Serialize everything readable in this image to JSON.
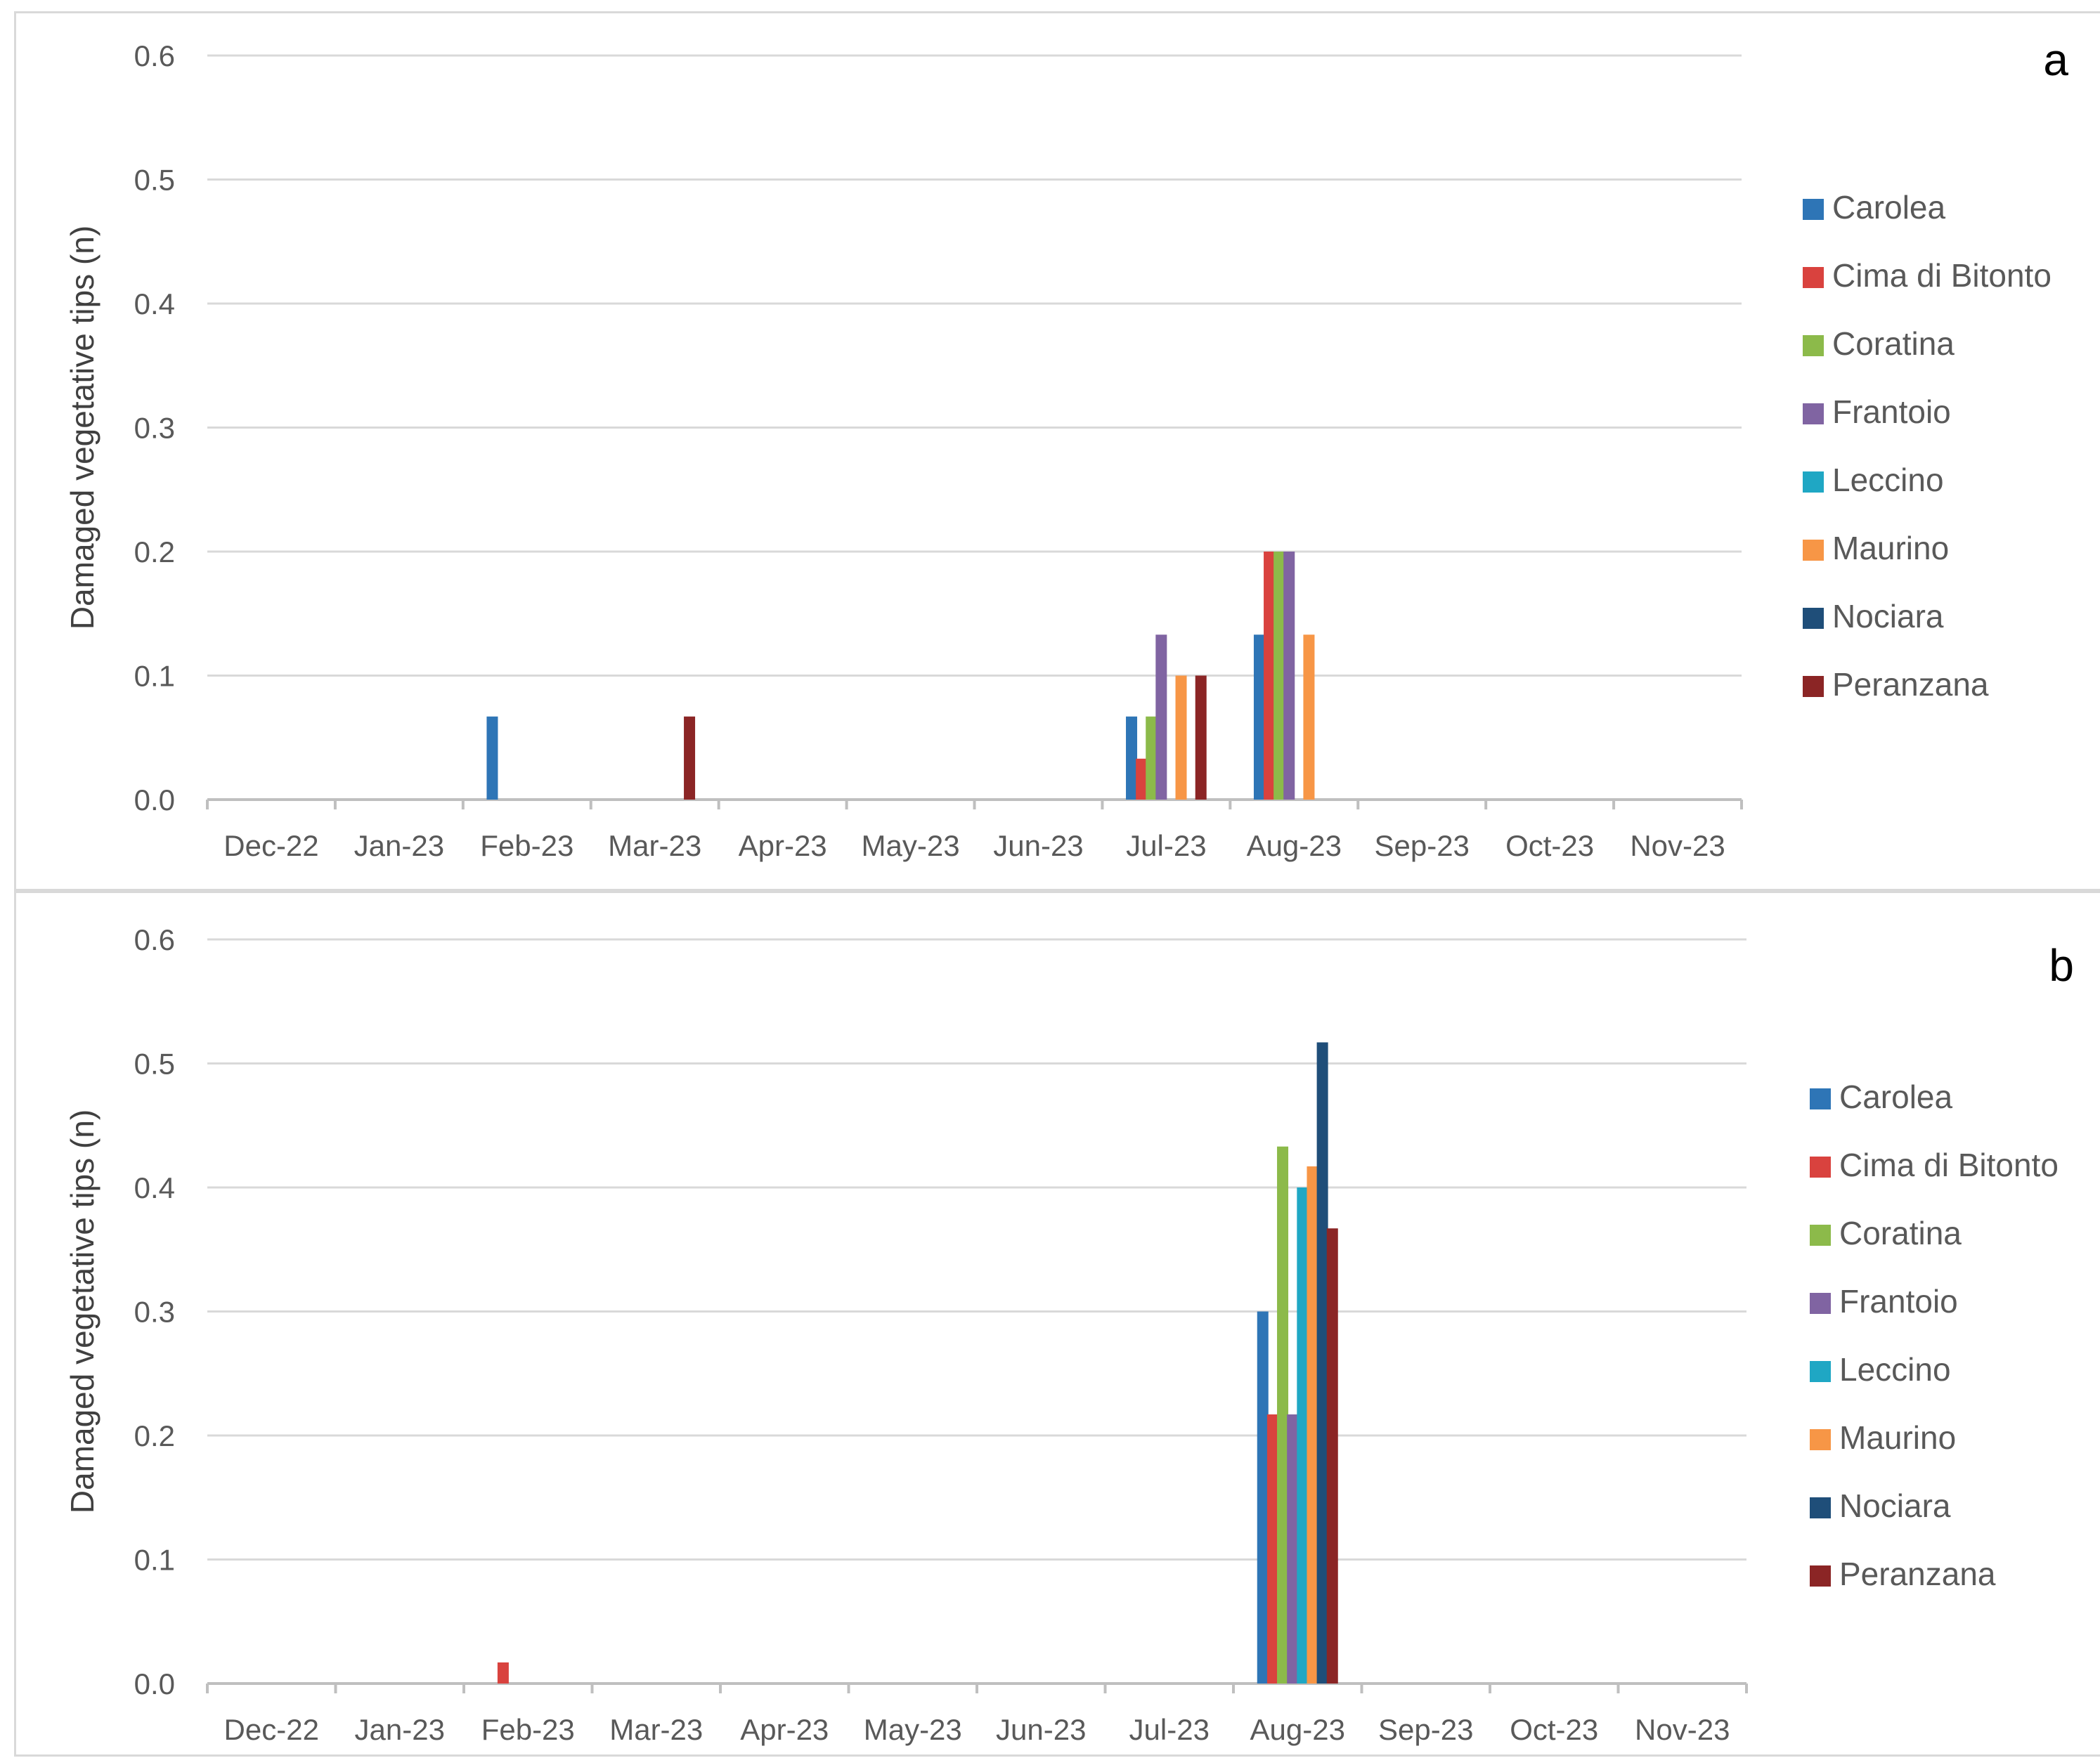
{
  "chart_data": [
    {
      "type": "bar",
      "panel_label": "a",
      "ylabel": "Damaged vegetative tips (n)",
      "xlabel": "",
      "ylim": [
        0,
        0.6
      ],
      "yticks": [
        "0.0",
        "0.1",
        "0.2",
        "0.3",
        "0.4",
        "0.5",
        "0.6"
      ],
      "grid": true,
      "legend_position": "right",
      "categories": [
        "Dec-22",
        "Jan-23",
        "Feb-23",
        "Mar-23",
        "Apr-23",
        "May-23",
        "Jun-23",
        "Jul-23",
        "Aug-23",
        "Sep-23",
        "Oct-23",
        "Nov-23"
      ],
      "series": [
        {
          "name": "Carolea",
          "color": "#2e75b6",
          "values": [
            0,
            0,
            0.067,
            0,
            0,
            0,
            0,
            0.067,
            0.133,
            0,
            0,
            0
          ]
        },
        {
          "name": "Cima di Bitonto",
          "color": "#d9423e",
          "values": [
            0,
            0,
            0,
            0,
            0,
            0,
            0,
            0.033,
            0.2,
            0,
            0,
            0
          ]
        },
        {
          "name": "Coratina",
          "color": "#8cba4a",
          "values": [
            0,
            0,
            0,
            0,
            0,
            0,
            0,
            0.067,
            0.2,
            0,
            0,
            0
          ]
        },
        {
          "name": "Frantoio",
          "color": "#8064a2",
          "values": [
            0,
            0,
            0,
            0,
            0,
            0,
            0,
            0.133,
            0.2,
            0,
            0,
            0
          ]
        },
        {
          "name": "Leccino",
          "color": "#1fa7c4",
          "values": [
            0,
            0,
            0,
            0,
            0,
            0,
            0,
            0,
            0,
            0,
            0,
            0
          ]
        },
        {
          "name": "Maurino",
          "color": "#f79646",
          "values": [
            0,
            0,
            0,
            0,
            0,
            0,
            0,
            0.1,
            0.133,
            0,
            0,
            0
          ]
        },
        {
          "name": "Nociara",
          "color": "#1f4e79",
          "values": [
            0,
            0,
            0,
            0,
            0,
            0,
            0,
            0,
            0,
            0,
            0,
            0
          ]
        },
        {
          "name": "Peranzana",
          "color": "#8b2525",
          "values": [
            0,
            0,
            0,
            0.067,
            0,
            0,
            0,
            0.1,
            0,
            0,
            0,
            0
          ]
        }
      ]
    },
    {
      "type": "bar",
      "panel_label": "b",
      "ylabel": "Damaged vegetative tips (n)",
      "xlabel": "",
      "ylim": [
        0,
        0.6
      ],
      "yticks": [
        "0.0",
        "0.1",
        "0.2",
        "0.3",
        "0.4",
        "0.5",
        "0.6"
      ],
      "grid": true,
      "legend_position": "right",
      "categories": [
        "Dec-22",
        "Jan-23",
        "Feb-23",
        "Mar-23",
        "Apr-23",
        "May-23",
        "Jun-23",
        "Jul-23",
        "Aug-23",
        "Sep-23",
        "Oct-23",
        "Nov-23"
      ],
      "series": [
        {
          "name": "Carolea",
          "color": "#2e75b6",
          "values": [
            0,
            0,
            0,
            0,
            0,
            0,
            0,
            0,
            0.3,
            0,
            0,
            0
          ]
        },
        {
          "name": "Cima di Bitonto",
          "color": "#d9423e",
          "values": [
            0,
            0,
            0.017,
            0,
            0,
            0,
            0,
            0,
            0.217,
            0,
            0,
            0
          ]
        },
        {
          "name": "Coratina",
          "color": "#8cba4a",
          "values": [
            0,
            0,
            0,
            0,
            0,
            0,
            0,
            0,
            0.433,
            0,
            0,
            0
          ]
        },
        {
          "name": "Frantoio",
          "color": "#8064a2",
          "values": [
            0,
            0,
            0,
            0,
            0,
            0,
            0,
            0,
            0.217,
            0,
            0,
            0
          ]
        },
        {
          "name": "Leccino",
          "color": "#1fa7c4",
          "values": [
            0,
            0,
            0,
            0,
            0,
            0,
            0,
            0,
            0.4,
            0,
            0,
            0
          ]
        },
        {
          "name": "Maurino",
          "color": "#f79646",
          "values": [
            0,
            0,
            0,
            0,
            0,
            0,
            0,
            0,
            0.417,
            0,
            0,
            0
          ]
        },
        {
          "name": "Nociara",
          "color": "#1f4e79",
          "values": [
            0,
            0,
            0,
            0,
            0,
            0,
            0,
            0,
            0.517,
            0,
            0,
            0
          ]
        },
        {
          "name": "Peranzana",
          "color": "#8b2525",
          "values": [
            0,
            0,
            0,
            0,
            0,
            0,
            0,
            0,
            0.367,
            0,
            0,
            0
          ]
        }
      ]
    }
  ]
}
